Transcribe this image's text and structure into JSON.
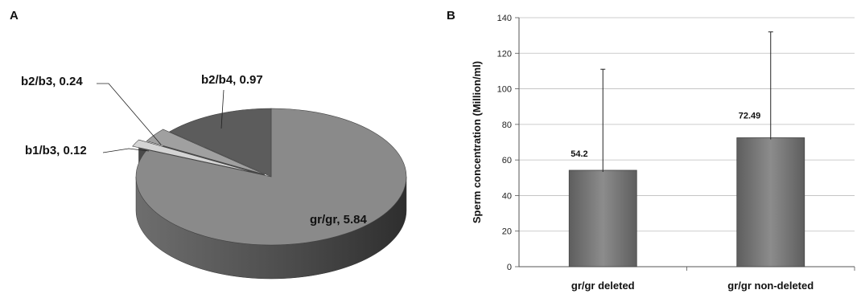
{
  "chart_data": [
    {
      "panel": "A",
      "type": "pie",
      "title": "",
      "slices": [
        {
          "label": "gr/gr, 5.84",
          "value": 5.84,
          "color": "#8a8a8a"
        },
        {
          "label": "b1/b3, 0.12",
          "value": 0.12,
          "color": "#d4d4d4"
        },
        {
          "label": "b2/b3, 0.24",
          "value": 0.24,
          "color": "#a0a0a0"
        },
        {
          "label": "b2/b4, 0.97",
          "value": 0.97,
          "color": "#5c5c5c"
        }
      ]
    },
    {
      "panel": "B",
      "type": "bar",
      "title": "",
      "categories": [
        "gr/gr deleted",
        "gr/gr non-deleted"
      ],
      "values": [
        54.2,
        72.49
      ],
      "value_labels": [
        "54.2",
        "72.49"
      ],
      "error_upper": [
        111,
        132
      ],
      "ylabel": "Sperm concentration (Million/ml)",
      "xlabel": "",
      "ylim": [
        0,
        140
      ],
      "yticks": [
        0,
        20,
        40,
        60,
        80,
        100,
        120,
        140
      ],
      "grid": true,
      "bar_color": "#777777"
    }
  ]
}
